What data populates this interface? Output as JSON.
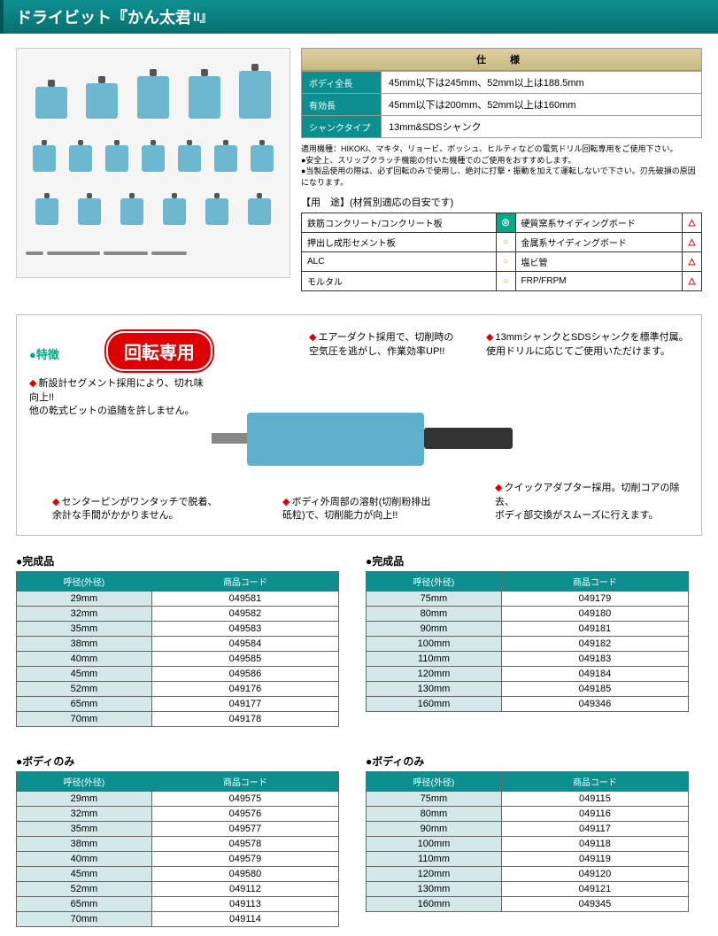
{
  "title": {
    "main": "ドライビット『かん太君",
    "suffix": "II』"
  },
  "spec": {
    "header": "仕　様",
    "rows": [
      {
        "label": "ボディ全長",
        "value": "45mm以下は245mm、52mm以上は188.5mm"
      },
      {
        "label": "有効長",
        "value": "45mm以下は200mm、52mm以上は160mm"
      },
      {
        "label": "シャンクタイプ",
        "value": "13mm&SDSシャンク"
      }
    ],
    "notes": [
      "適用機種：HIKOKI、マキタ、リョービ、ボッシュ、ヒルティなどの電気ドリル回転専用をご使用下さい。",
      "●安全上、スリップクラッチ機能の付いた機種でのご使用をおすすめします。",
      "●当製品使用の際は、必ず回転のみで使用し、絶対に打撃・振動を加えて運転しないで下さい。刃先破損の原因になります。"
    ]
  },
  "usage": {
    "header": "【用　途】(材質別適応の目安です)",
    "rows": [
      [
        {
          "t": "鉄筋コンクリート/コンクリート板",
          "m": "◎",
          "c": "ok"
        },
        {
          "t": "硬質窯系サイディングボード",
          "m": "△",
          "c": "warn"
        }
      ],
      [
        {
          "t": "押出し成形セメント板",
          "m": "○",
          "c": "mid"
        },
        {
          "t": "金属系サイディングボード",
          "m": "△",
          "c": "warn"
        }
      ],
      [
        {
          "t": "ALC",
          "m": "○",
          "c": "mid"
        },
        {
          "t": "塩ビ管",
          "m": "△",
          "c": "warn"
        }
      ],
      [
        {
          "t": "モルタル",
          "m": "○",
          "c": "mid"
        },
        {
          "t": "FRP/FRPM",
          "m": "△",
          "c": "warn"
        }
      ]
    ]
  },
  "features": {
    "title": "●特徴",
    "badge": "回転専用",
    "items": [
      "新設計セグメント採用により、切れ味向上!!\n他の乾式ビットの追随を許しません。",
      "エアーダクト採用で、切削時の\n空気圧を逃がし、作業効率UP!!",
      "13mmシャンクとSDSシャンクを標準付属。\n使用ドリルに応じてご使用いただけます。",
      "センターピンがワンタッチで脱着、\n余計な手間がかかりません。",
      "ボディ外周部の溶射(切削粉排出\n砥粒)で、切削能力が向上!!",
      "クイックアダプター採用。切削コアの除去、\nボディ部交換がスムーズに行えます。"
    ]
  },
  "tables": [
    {
      "title": "●完成品",
      "cols": [
        "呼径(外径)",
        "商品コード"
      ],
      "rows": [
        [
          "29mm",
          "049581"
        ],
        [
          "32mm",
          "049582"
        ],
        [
          "35mm",
          "049583"
        ],
        [
          "38mm",
          "049584"
        ],
        [
          "40mm",
          "049585"
        ],
        [
          "45mm",
          "049586"
        ],
        [
          "52mm",
          "049176"
        ],
        [
          "65mm",
          "049177"
        ],
        [
          "70mm",
          "049178"
        ]
      ]
    },
    {
      "title": "●完成品",
      "cols": [
        "呼径(外径)",
        "商品コード"
      ],
      "rows": [
        [
          "75mm",
          "049179"
        ],
        [
          "80mm",
          "049180"
        ],
        [
          "90mm",
          "049181"
        ],
        [
          "100mm",
          "049182"
        ],
        [
          "110mm",
          "049183"
        ],
        [
          "120mm",
          "049184"
        ],
        [
          "130mm",
          "049185"
        ],
        [
          "160mm",
          "049346"
        ]
      ]
    },
    {
      "title": "●ボディのみ",
      "cols": [
        "呼径(外径)",
        "商品コード"
      ],
      "rows": [
        [
          "29mm",
          "049575"
        ],
        [
          "32mm",
          "049576"
        ],
        [
          "35mm",
          "049577"
        ],
        [
          "38mm",
          "049578"
        ],
        [
          "40mm",
          "049579"
        ],
        [
          "45mm",
          "049580"
        ],
        [
          "52mm",
          "049112"
        ],
        [
          "65mm",
          "049113"
        ],
        [
          "70mm",
          "049114"
        ]
      ]
    },
    {
      "title": "●ボディのみ",
      "cols": [
        "呼径(外径)",
        "商品コード"
      ],
      "rows": [
        [
          "75mm",
          "049115"
        ],
        [
          "80mm",
          "049116"
        ],
        [
          "90mm",
          "049117"
        ],
        [
          "100mm",
          "049118"
        ],
        [
          "110mm",
          "049119"
        ],
        [
          "120mm",
          "049120"
        ],
        [
          "130mm",
          "049121"
        ],
        [
          "160mm",
          "049345"
        ]
      ]
    }
  ]
}
